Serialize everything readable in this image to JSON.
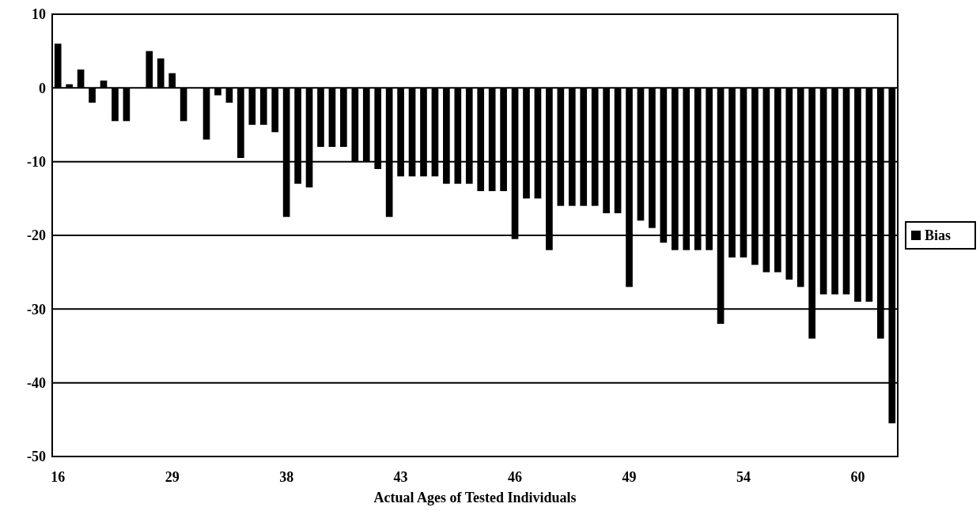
{
  "chart_data": {
    "type": "bar",
    "xlabel": "Actual Ages of Tested Individuals",
    "categories": [
      "16",
      null,
      null,
      null,
      null,
      null,
      null,
      null,
      null,
      null,
      "29",
      null,
      null,
      null,
      null,
      null,
      null,
      null,
      null,
      null,
      "38",
      null,
      null,
      null,
      null,
      null,
      null,
      null,
      null,
      null,
      "43",
      null,
      null,
      null,
      null,
      null,
      null,
      null,
      null,
      null,
      "46",
      null,
      null,
      null,
      null,
      null,
      null,
      null,
      null,
      null,
      "49",
      null,
      null,
      null,
      null,
      null,
      null,
      null,
      null,
      null,
      "54",
      null,
      null,
      null,
      null,
      null,
      null,
      null,
      null,
      null,
      "60",
      null,
      null,
      null
    ],
    "series": [
      {
        "name": "Bias",
        "color": "#000000",
        "values": [
          6,
          0.5,
          2.5,
          -2,
          1,
          -4.5,
          -4.5,
          0,
          5,
          4,
          2,
          -4.5,
          0,
          -7,
          -1,
          -2,
          -9.5,
          -5,
          -5,
          -6,
          -17.5,
          -13,
          -13.5,
          -8,
          -8,
          -8,
          -10,
          -10,
          -11,
          -17.5,
          -12,
          -12,
          -12,
          -12,
          -13,
          -13,
          -13,
          -14,
          -14,
          -14,
          -20.5,
          -15,
          -15,
          -22,
          -16,
          -16,
          -16,
          -16,
          -17,
          -17,
          -27,
          -18,
          -19,
          -21,
          -22,
          -22,
          -22,
          -22,
          -32,
          -23,
          -23,
          -24,
          -25,
          -25,
          -26,
          -27,
          -34,
          -28,
          -28,
          -28,
          -29,
          -29,
          -34,
          -45.5
        ]
      }
    ],
    "ylim": [
      -50,
      10
    ],
    "yticks": [
      -50,
      -40,
      -30,
      -20,
      -10,
      0,
      10
    ],
    "grid": "y",
    "legend": "right"
  }
}
